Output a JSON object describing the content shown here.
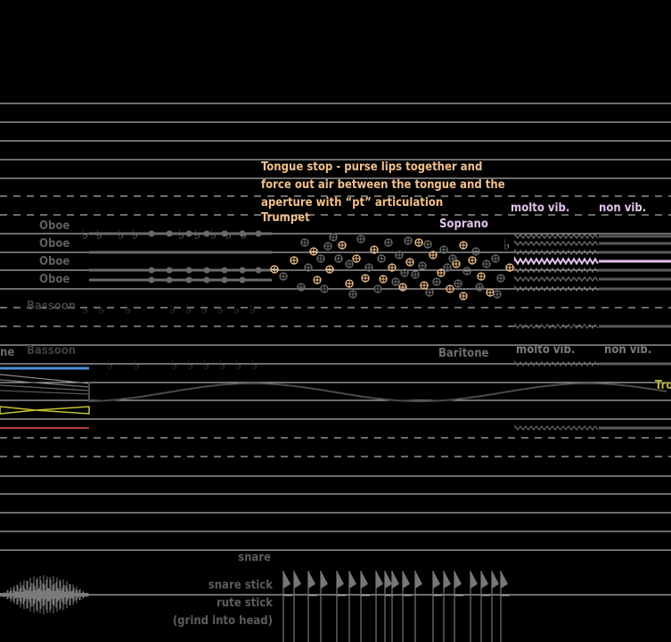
{
  "colors": {
    "background": "#000000",
    "staff_line": "#d9d9d9",
    "orange_text": "#f2c08d",
    "pink_text": "#e3c2ea",
    "grey_label": "#5f5f5f",
    "yellow": "#c9c233",
    "red": "#b33a3a",
    "blue": "#4a8fd6"
  },
  "score": {
    "oboe_labels": [
      "Oboe",
      "Oboe",
      "Oboe",
      "Oboe"
    ],
    "bassoon_upper": "Bassoon",
    "bassoon_lower": "Bassoon",
    "left_fragment": "ne",
    "instruction": {
      "line1": "Tongue stop - purse lips together and",
      "line2": "force out air between the tongue and the",
      "line3": "aperture with “pt” articulation",
      "line4": "Trumpet"
    },
    "soprano": "Soprano",
    "baritone": "Baritone",
    "upper_molto": "molto vib.",
    "upper_non": "non vib.",
    "lower_molto": "molto vib.",
    "lower_non": "non vib.",
    "trombone_fragment": "Tro",
    "percussion": {
      "snare": "snare",
      "snare_stick": "snare stick",
      "rute_stick": "rute stick",
      "grind": "(grind into head)"
    }
  }
}
